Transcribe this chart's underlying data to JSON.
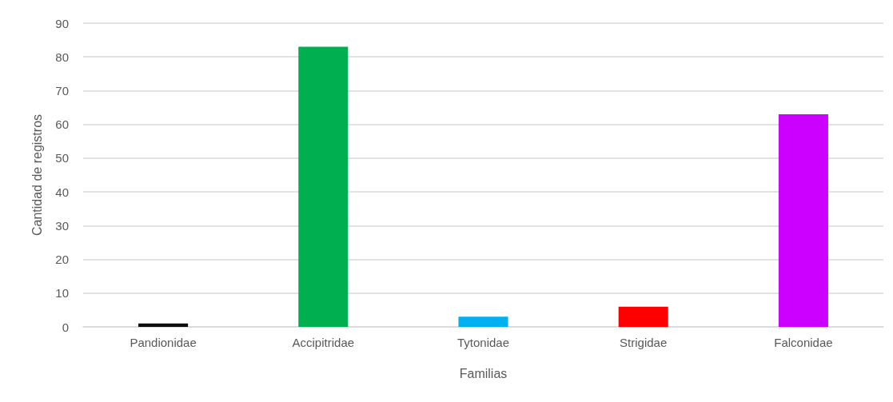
{
  "chart_data": {
    "type": "bar",
    "categories": [
      "Pandionidae",
      "Accipitridae",
      "Tytonidae",
      "Strigidae",
      "Falconidae"
    ],
    "values": [
      1,
      83,
      3,
      6,
      63
    ],
    "colors": [
      "#0d0d0d",
      "#00b050",
      "#00b0f0",
      "#ff0000",
      "#cc00ff"
    ],
    "xlabel": "Familias",
    "ylabel": "Cantidad de registros",
    "ylim": [
      0,
      90
    ],
    "yticks": [
      0,
      10,
      20,
      30,
      40,
      50,
      60,
      70,
      80,
      90
    ],
    "grid": "y"
  }
}
